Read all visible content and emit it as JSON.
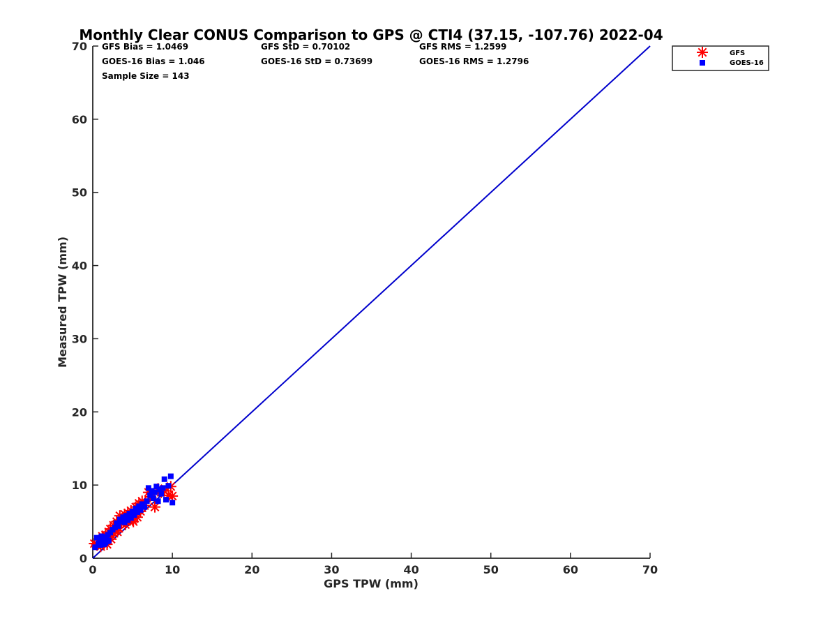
{
  "chart_data": {
    "type": "scatter",
    "title": "Monthly Clear CONUS Comparison to GPS @ CTI4 (37.15, -107.76) 2022-04",
    "xlabel": "GPS TPW (mm)",
    "ylabel": "Measured TPW (mm)",
    "xlim": [
      0,
      70
    ],
    "ylim": [
      0,
      70
    ],
    "xticks": [
      0,
      10,
      20,
      30,
      40,
      50,
      60,
      70
    ],
    "yticks": [
      0,
      10,
      20,
      30,
      40,
      50,
      60,
      70
    ],
    "grid": false,
    "legend_position": "top-right outside",
    "stats": {
      "gfs_bias": "GFS Bias = 1.0469",
      "goes_bias": "GOES-16 Bias = 1.046",
      "sample_size": "Sample Size = 143",
      "gfs_std": "GFS StD = 0.70102",
      "goes_std": "GOES-16 StD = 0.73699",
      "gfs_rms": "GFS RMS = 1.2599",
      "goes_rms": "GOES-16 RMS = 1.2796"
    },
    "reference_line": {
      "x": [
        0,
        70
      ],
      "y": [
        0,
        70
      ],
      "color": "#0000cc"
    },
    "series": [
      {
        "name": "GFS",
        "marker": "asterisk",
        "color": "#ff0000",
        "points": [
          [
            0.2,
            2.0
          ],
          [
            0.5,
            1.8
          ],
          [
            0.8,
            2.5
          ],
          [
            1.0,
            2.2
          ],
          [
            1.2,
            3.0
          ],
          [
            1.4,
            2.0
          ],
          [
            1.5,
            2.6
          ],
          [
            1.6,
            3.2
          ],
          [
            1.8,
            2.4
          ],
          [
            2.0,
            3.6
          ],
          [
            2.2,
            4.0
          ],
          [
            2.4,
            3.1
          ],
          [
            2.6,
            4.5
          ],
          [
            2.8,
            3.8
          ],
          [
            3.0,
            5.0
          ],
          [
            3.2,
            4.2
          ],
          [
            3.4,
            5.8
          ],
          [
            3.6,
            4.8
          ],
          [
            3.8,
            5.4
          ],
          [
            4.0,
            6.0
          ],
          [
            4.2,
            5.0
          ],
          [
            4.4,
            6.2
          ],
          [
            4.6,
            5.5
          ],
          [
            4.8,
            6.5
          ],
          [
            5.0,
            5.2
          ],
          [
            5.2,
            6.0
          ],
          [
            5.4,
            7.0
          ],
          [
            5.6,
            5.6
          ],
          [
            5.8,
            7.5
          ],
          [
            6.0,
            6.4
          ],
          [
            6.2,
            7.8
          ],
          [
            6.5,
            7.2
          ],
          [
            7.0,
            9.0
          ],
          [
            7.2,
            8.4
          ],
          [
            7.5,
            8.8
          ],
          [
            7.8,
            7.0
          ],
          [
            8.2,
            9.5
          ],
          [
            8.6,
            9.0
          ],
          [
            9.0,
            9.2
          ],
          [
            9.5,
            8.6
          ],
          [
            9.8,
            9.8
          ],
          [
            10.0,
            8.5
          ],
          [
            1.0,
            1.6
          ],
          [
            1.8,
            1.9
          ],
          [
            2.3,
            2.6
          ],
          [
            3.1,
            3.6
          ],
          [
            4.1,
            4.6
          ],
          [
            5.1,
            5.0
          ]
        ]
      },
      {
        "name": "GOES-16",
        "marker": "square",
        "color": "#0000ff",
        "points": [
          [
            0.3,
            1.5
          ],
          [
            0.5,
            2.8
          ],
          [
            0.7,
            2.0
          ],
          [
            0.9,
            2.6
          ],
          [
            1.0,
            1.8
          ],
          [
            1.1,
            3.0
          ],
          [
            1.2,
            2.2
          ],
          [
            1.3,
            2.5
          ],
          [
            1.4,
            1.9
          ],
          [
            1.5,
            2.9
          ],
          [
            1.6,
            2.1
          ],
          [
            1.7,
            2.7
          ],
          [
            1.8,
            2.3
          ],
          [
            1.9,
            3.2
          ],
          [
            2.0,
            2.4
          ],
          [
            2.2,
            3.5
          ],
          [
            2.5,
            3.9
          ],
          [
            2.8,
            4.2
          ],
          [
            3.0,
            4.8
          ],
          [
            3.2,
            4.4
          ],
          [
            3.4,
            5.3
          ],
          [
            3.6,
            5.0
          ],
          [
            3.8,
            5.6
          ],
          [
            4.0,
            4.9
          ],
          [
            4.2,
            5.8
          ],
          [
            4.4,
            5.2
          ],
          [
            4.6,
            6.1
          ],
          [
            4.8,
            5.5
          ],
          [
            5.0,
            6.4
          ],
          [
            5.2,
            5.9
          ],
          [
            5.4,
            6.8
          ],
          [
            5.6,
            6.3
          ],
          [
            5.8,
            7.1
          ],
          [
            6.0,
            6.6
          ],
          [
            6.2,
            7.4
          ],
          [
            6.5,
            7.0
          ],
          [
            6.8,
            7.8
          ],
          [
            7.0,
            9.6
          ],
          [
            7.2,
            8.6
          ],
          [
            7.4,
            9.2
          ],
          [
            7.6,
            8.2
          ],
          [
            7.8,
            9.0
          ],
          [
            8.0,
            9.8
          ],
          [
            8.2,
            7.8
          ],
          [
            8.4,
            9.4
          ],
          [
            8.6,
            8.8
          ],
          [
            8.8,
            9.6
          ],
          [
            9.0,
            10.8
          ],
          [
            9.2,
            8.0
          ],
          [
            9.5,
            9.9
          ],
          [
            9.8,
            11.2
          ],
          [
            10.0,
            7.6
          ]
        ]
      }
    ]
  }
}
